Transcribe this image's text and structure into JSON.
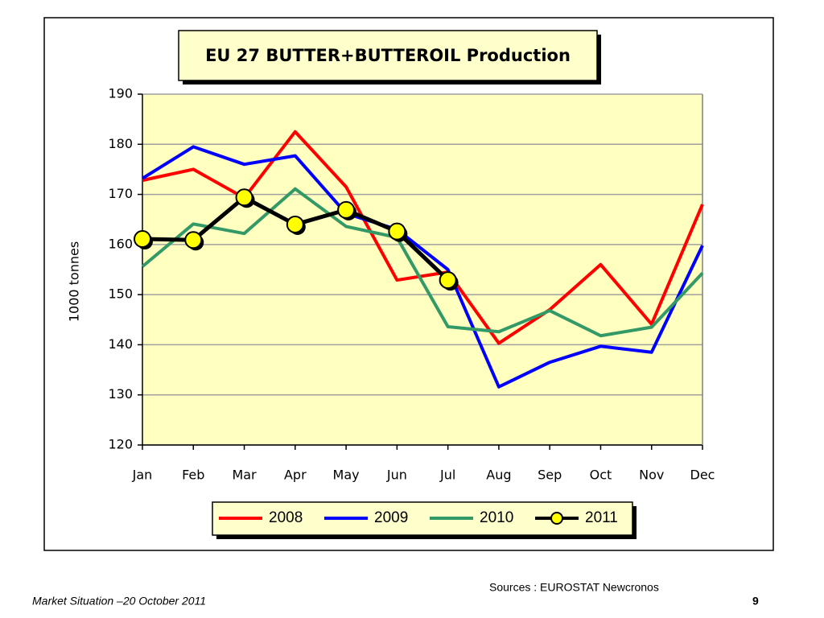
{
  "chart_data": {
    "type": "line",
    "title": "EU 27 BUTTER+BUTTEROIL Production",
    "y_label": "1000 tonnes",
    "categories": [
      "Jan",
      "Feb",
      "Mar",
      "Apr",
      "May",
      "Jun",
      "Jul",
      "Aug",
      "Sep",
      "Oct",
      "Nov",
      "Dec"
    ],
    "series": [
      {
        "name": "2008",
        "color": "#ff0000",
        "values": [
          172.8,
          175,
          169.3,
          182.5,
          171.5,
          152.9,
          154.5,
          140.3,
          147,
          156,
          144.1,
          168
        ]
      },
      {
        "name": "2009",
        "color": "#0000ff",
        "values": [
          173.2,
          179.5,
          176,
          177.7,
          166.2,
          163,
          155,
          131.6,
          136.5,
          139.7,
          138.5,
          159.8
        ]
      },
      {
        "name": "2010",
        "color": "#339966",
        "values": [
          155.6,
          164.1,
          162.2,
          171.1,
          163.6,
          161.4,
          143.6,
          142.6,
          146.8,
          141.8,
          143.5,
          154.3
        ]
      },
      {
        "name": "2011",
        "color": "#000000",
        "marker": "circle",
        "marker_color": "#ffff00",
        "values": [
          161.1,
          160.9,
          169.4,
          164,
          166.9,
          162.6,
          152.9,
          null,
          null,
          null,
          null,
          null
        ]
      }
    ],
    "ylim": [
      120,
      190
    ],
    "yticks": [
      120,
      130,
      140,
      150,
      160,
      170,
      180,
      190
    ],
    "grid": true,
    "legend": "bottom"
  },
  "footer": {
    "source": "Sources : EUROSTAT Newcronos",
    "caption": "Market Situation –20 October 2011",
    "page_number": "9"
  }
}
